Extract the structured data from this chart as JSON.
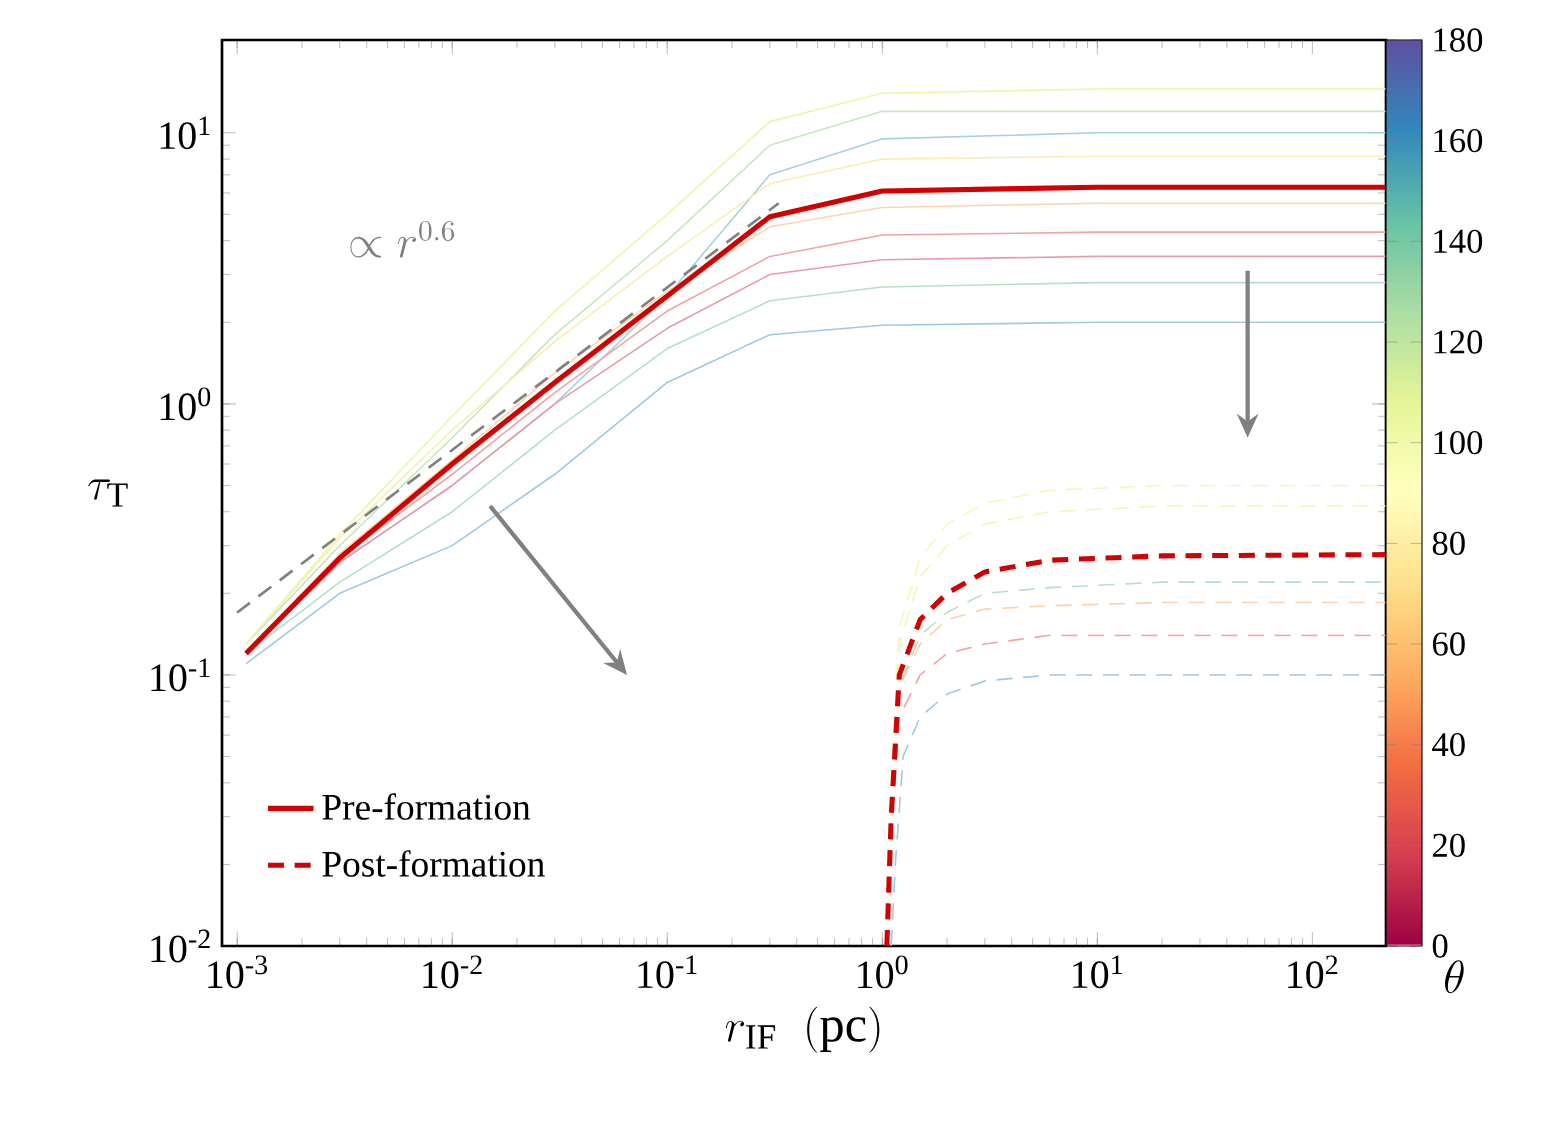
{
  "chart_data": {
    "type": "line",
    "log": "xy",
    "xlabel": "r_{\\rm IF}\\ \\ (\\rm pc)",
    "ylabel": "\\tau_{\\rm T}",
    "clabel": "\\theta",
    "xlim": [
      0.00085,
      220
    ],
    "ylim": [
      0.01,
      22
    ],
    "xticks": [
      {
        "value": 0.001,
        "label": "10$^{-3}$"
      },
      {
        "value": 0.01,
        "label": "10$^{-2}$"
      },
      {
        "value": 0.1,
        "label": "10$^{-1}$"
      },
      {
        "value": 1,
        "label": "10$^{0}$"
      },
      {
        "value": 10,
        "label": "10$^{1}$"
      },
      {
        "value": 100,
        "label": "10$^{2}$"
      }
    ],
    "yticks": [
      {
        "value": 0.01,
        "label": "10$^{-2}$"
      },
      {
        "value": 0.1,
        "label": "10$^{-1}$"
      },
      {
        "value": 1,
        "label": "10$^{0}$"
      },
      {
        "value": 10,
        "label": "10$^{1}$"
      }
    ],
    "clim": [
      0,
      180
    ],
    "cticks": [
      0,
      20,
      40,
      60,
      80,
      100,
      120,
      140,
      160,
      180
    ],
    "legend": "bottom left",
    "marker": "none",
    "annotations": [
      "\\propto r^{0.6}"
    ],
    "x": [
      0.0011,
      0.003,
      0.01,
      0.03,
      0.1,
      0.3,
      1,
      10,
      220
    ],
    "series": [
      {
        "color": "#eef5a6",
        "line_style": "solid",
        "values": [
          0.13,
          0.33,
          0.9,
          2.2,
          5,
          11,
          14,
          14.5,
          14.5
        ]
      },
      {
        "color": "#c5e8bd",
        "line_style": "solid",
        "values": [
          0.13,
          0.3,
          0.75,
          1.8,
          4,
          9,
          12,
          12,
          12
        ]
      },
      {
        "color": "#a3d3df",
        "line_style": "solid",
        "values": [
          0.12,
          0.26,
          0.5,
          1.0,
          2.5,
          7,
          9.5,
          10,
          10
        ]
      },
      {
        "color": "#f8eeb0",
        "line_style": "solid",
        "values": [
          0.13,
          0.32,
          0.8,
          1.7,
          3.5,
          6.5,
          8,
          8.2,
          8.2
        ]
      },
      {
        "color": "#fdd5ad",
        "line_style": "solid",
        "values": [
          0.12,
          0.28,
          0.62,
          1.3,
          2.6,
          4.5,
          5.3,
          5.5,
          5.5
        ]
      },
      {
        "color": "#f2a3a3",
        "line_style": "solid",
        "values": [
          0.12,
          0.27,
          0.55,
          1.1,
          2.2,
          3.5,
          4.2,
          4.3,
          4.3
        ]
      },
      {
        "color": "#eb9aa8",
        "line_style": "solid",
        "values": [
          0.12,
          0.26,
          0.5,
          1.0,
          1.9,
          3.0,
          3.4,
          3.5,
          3.5
        ]
      },
      {
        "color": "#b5e0c4",
        "line_style": "solid",
        "values": [
          0.12,
          0.22,
          0.4,
          0.8,
          1.6,
          2.4,
          2.7,
          2.8,
          2.8
        ]
      },
      {
        "color": "#9fc9df",
        "line_style": "solid",
        "values": [
          0.11,
          0.2,
          0.3,
          0.55,
          1.2,
          1.8,
          1.95,
          2.0,
          2.0
        ]
      },
      {
        "color": "#808080",
        "line_style": "dashed",
        "x": [
          0.001,
          0.33
        ],
        "values": [
          0.17,
          5.5
        ]
      },
      {
        "color": "#fcf4bb",
        "line_style": "dashed",
        "x": [
          1.05,
          1.1,
          1.2,
          1.5,
          2,
          3,
          6,
          20,
          220
        ],
        "values": [
          0.01,
          0.04,
          0.15,
          0.27,
          0.36,
          0.43,
          0.48,
          0.5,
          0.5
        ]
      },
      {
        "color": "#f2f6b8",
        "line_style": "dashed",
        "x": [
          1.05,
          1.1,
          1.2,
          1.5,
          2,
          3,
          6,
          20,
          220
        ],
        "values": [
          0.01,
          0.035,
          0.13,
          0.23,
          0.3,
          0.36,
          0.4,
          0.42,
          0.42
        ]
      },
      {
        "color": "#b5e0c4",
        "line_style": "dashed",
        "x": [
          1.05,
          1.1,
          1.2,
          1.5,
          2,
          3,
          6,
          20,
          220
        ],
        "values": [
          0.01,
          0.03,
          0.09,
          0.14,
          0.17,
          0.2,
          0.21,
          0.22,
          0.22
        ]
      },
      {
        "color": "#fcd0a8",
        "line_style": "dashed",
        "x": [
          1.05,
          1.1,
          1.2,
          1.5,
          2,
          3,
          6,
          20,
          220
        ],
        "values": [
          0.01,
          0.03,
          0.09,
          0.13,
          0.16,
          0.175,
          0.18,
          0.185,
          0.185
        ]
      },
      {
        "color": "#f2a3a3",
        "line_style": "dashed",
        "x": [
          1.05,
          1.1,
          1.2,
          1.5,
          2,
          3,
          6,
          20,
          220
        ],
        "values": [
          0.01,
          0.025,
          0.07,
          0.1,
          0.12,
          0.13,
          0.14,
          0.14,
          0.14
        ]
      },
      {
        "color": "#9fc9df",
        "line_style": "dashed",
        "x": [
          1.1,
          1.15,
          1.25,
          1.5,
          2,
          3,
          6,
          20,
          220
        ],
        "values": [
          0.01,
          0.02,
          0.05,
          0.07,
          0.085,
          0.095,
          0.1,
          0.1,
          0.1
        ]
      },
      {
        "name": "Pre-formation",
        "color": "#d40000",
        "line_style": "solid",
        "values": [
          0.12,
          0.27,
          0.6,
          1.2,
          2.5,
          4.9,
          6.1,
          6.3,
          6.3
        ]
      },
      {
        "name": "Post-formation",
        "color": "#d40000",
        "line_style": "dashed",
        "x": [
          1.05,
          1.1,
          1.2,
          1.5,
          2,
          3,
          6,
          20,
          220
        ],
        "values": [
          0.01,
          0.03,
          0.1,
          0.16,
          0.2,
          0.24,
          0.265,
          0.275,
          0.278
        ]
      }
    ]
  }
}
